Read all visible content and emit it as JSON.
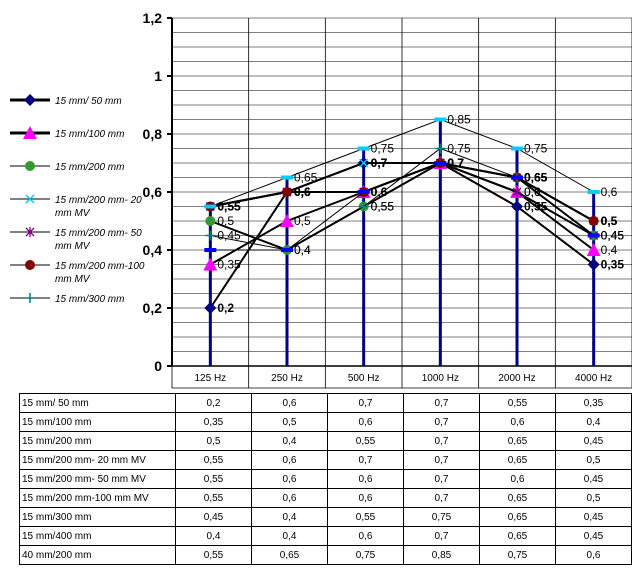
{
  "chart_data": {
    "type": "line",
    "categories": [
      "125 Hz",
      "250 Hz",
      "500 Hz",
      "1000 Hz",
      "2000 Hz",
      "4000 Hz"
    ],
    "ylim": [
      0,
      1.2
    ],
    "yticks": [
      "0",
      "0,2",
      "0,4",
      "0,6",
      "0,8",
      "1",
      "1,2"
    ],
    "grid": true,
    "legend_position": "left",
    "series": [
      {
        "name": "15 mm/ 50 mm",
        "values": [
          0.2,
          0.6,
          0.7,
          0.7,
          0.55,
          0.35
        ],
        "color": "#000080",
        "marker": "diamond",
        "labels": [
          "0,2",
          "0,6",
          "0,7",
          "0,7",
          "0,55",
          "0,35"
        ],
        "show_labels": true
      },
      {
        "name": "15 mm/100 mm",
        "values": [
          0.35,
          0.5,
          0.6,
          0.7,
          0.6,
          0.4
        ],
        "color": "#ff00ff",
        "marker": "triangle",
        "labels": [
          "0,35",
          "0,5",
          "0,6",
          "0,7",
          "0,6",
          "0,4"
        ],
        "show_labels": true
      },
      {
        "name": "15 mm/200 mm",
        "values": [
          0.5,
          0.4,
          0.55,
          0.7,
          0.65,
          0.45
        ],
        "color": "#339933",
        "marker": "circle",
        "labels": [
          "0,5",
          "0,4",
          "0,55",
          "0,7",
          "0,65",
          "0,45"
        ],
        "show_labels": true
      },
      {
        "name": "15 mm/200 mm- 20 mm MV",
        "values": [
          0.55,
          0.6,
          0.7,
          0.7,
          0.65,
          0.5
        ],
        "color": "#00ccff",
        "marker": "x",
        "labels": [
          "0,55",
          "0,6",
          "0,7",
          "0,7",
          "0,65",
          "0,5"
        ],
        "show_labels": true
      },
      {
        "name": "15 mm/200 mm- 50 mm MV",
        "values": [
          0.55,
          0.6,
          0.6,
          0.7,
          0.6,
          0.45
        ],
        "color": "#800080",
        "marker": "star",
        "labels": [
          "0,55",
          "0,6",
          "0,6",
          "0,7",
          "0,6",
          "0,45"
        ],
        "show_labels": true
      },
      {
        "name": "15 mm/200 mm-100 mm MV",
        "values": [
          0.55,
          0.6,
          0.6,
          0.7,
          0.65,
          0.5
        ],
        "color": "#800000",
        "marker": "circle",
        "labels": [
          "0,55",
          "0,6",
          "0,6",
          "0,7",
          "0,65",
          "0,5"
        ],
        "show_labels": true
      },
      {
        "name": "15 mm/300 mm",
        "values": [
          0.45,
          0.4,
          0.55,
          0.75,
          0.65,
          0.45
        ],
        "color": "#008080",
        "marker": "plus",
        "labels": [
          "0,45",
          "0,4",
          "0,55",
          "0,75",
          "0,65",
          "0,45"
        ],
        "show_labels": true
      },
      {
        "name": "15 mm/400 mm",
        "values": [
          0.4,
          0.4,
          0.6,
          0.7,
          0.65,
          0.45
        ],
        "color": "#0000ff",
        "marker": "dash",
        "labels": [
          "0,4",
          "0,4",
          "0,6",
          "0,7",
          "0,65",
          "0,45"
        ],
        "show_labels": false
      },
      {
        "name": "40 mm/200 mm",
        "values": [
          0.55,
          0.65,
          0.75,
          0.85,
          0.75,
          0.6
        ],
        "color": "#00ccff",
        "marker": "dash",
        "labels": [
          "0,55",
          "0,65",
          "0,75",
          "0,85",
          "0,75",
          "0,6"
        ],
        "show_labels": true
      }
    ],
    "legend": [
      {
        "label": "15 mm/ 50 mm",
        "series": 0
      },
      {
        "label": "15 mm/100 mm",
        "series": 1
      },
      {
        "label": "15 mm/200 mm",
        "series": 2
      },
      {
        "label": "15 mm/200 mm- 20",
        "label2": "mm MV",
        "series": 3
      },
      {
        "label": "15 mm/200 mm- 50",
        "label2": "mm MV",
        "series": 4
      },
      {
        "label": "15 mm/200 mm-100",
        "label2": "mm MV",
        "series": 5
      },
      {
        "label": "15 mm/300 mm",
        "series": 6
      }
    ]
  },
  "table": {
    "rows": [
      {
        "label": "15 mm/ 50 mm",
        "cells": [
          "0,2",
          "0,6",
          "0,7",
          "0,7",
          "0,55",
          "0,35"
        ]
      },
      {
        "label": "15 mm/100 mm",
        "cells": [
          "0,35",
          "0,5",
          "0,6",
          "0,7",
          "0,6",
          "0,4"
        ]
      },
      {
        "label": "15 mm/200 mm",
        "cells": [
          "0,5",
          "0,4",
          "0,55",
          "0,7",
          "0,65",
          "0,45"
        ]
      },
      {
        "label": "15 mm/200 mm- 20 mm MV",
        "cells": [
          "0,55",
          "0,6",
          "0,7",
          "0,7",
          "0,65",
          "0,5"
        ]
      },
      {
        "label": "15 mm/200 mm- 50 mm MV",
        "cells": [
          "0,55",
          "0,6",
          "0,6",
          "0,7",
          "0,6",
          "0,45"
        ]
      },
      {
        "label": "15 mm/200 mm-100 mm MV",
        "cells": [
          "0,55",
          "0,6",
          "0,6",
          "0,7",
          "0,65",
          "0,5"
        ]
      },
      {
        "label": "15 mm/300 mm",
        "cells": [
          "0,45",
          "0,4",
          "0,55",
          "0,75",
          "0,65",
          "0,45"
        ]
      },
      {
        "label": "15 mm/400 mm",
        "cells": [
          "0,4",
          "0,4",
          "0,6",
          "0,7",
          "0,65",
          "0,45"
        ]
      },
      {
        "label": "40 mm/200 mm",
        "cells": [
          "0,55",
          "0,65",
          "0,75",
          "0,85",
          "0,75",
          "0,6"
        ]
      }
    ]
  }
}
